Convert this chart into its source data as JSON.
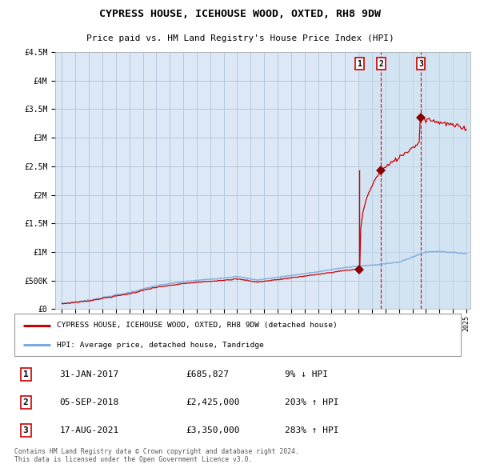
{
  "title": "CYPRESS HOUSE, ICEHOUSE WOOD, OXTED, RH8 9DW",
  "subtitle": "Price paid vs. HM Land Registry's House Price Index (HPI)",
  "ylim": [
    0,
    4500000
  ],
  "yticks": [
    0,
    500000,
    1000000,
    1500000,
    2000000,
    2500000,
    3000000,
    3500000,
    4000000,
    4500000
  ],
  "ytick_labels": [
    "£0",
    "£500K",
    "£1M",
    "£1.5M",
    "£2M",
    "£2.5M",
    "£3M",
    "£3.5M",
    "£4M",
    "£4.5M"
  ],
  "x_start_year": 1995,
  "x_end_year": 2025,
  "sale1_date": 2017.08,
  "sale1_price": 685827,
  "sale1_label": "1",
  "sale2_date": 2018.67,
  "sale2_price": 2425000,
  "sale2_label": "2",
  "sale3_date": 2021.62,
  "sale3_price": 3350000,
  "sale3_label": "3",
  "line_color_red": "#cc0000",
  "line_color_blue": "#7aabdb",
  "marker_color": "#880000",
  "background_color": "#ffffff",
  "plot_bg_color": "#dce8f5",
  "grid_color": "#b0c4d8",
  "legend_label_red": "CYPRESS HOUSE, ICEHOUSE WOOD, OXTED, RH8 9DW (detached house)",
  "legend_label_blue": "HPI: Average price, detached house, Tandridge",
  "footer_text": "Contains HM Land Registry data © Crown copyright and database right 2024.\nThis data is licensed under the Open Government Licence v3.0.",
  "table_rows": [
    [
      "1",
      "31-JAN-2017",
      "£685,827",
      "9% ↓ HPI"
    ],
    [
      "2",
      "05-SEP-2018",
      "£2,425,000",
      "203% ↑ HPI"
    ],
    [
      "3",
      "17-AUG-2021",
      "£3,350,000",
      "283% ↑ HPI"
    ]
  ]
}
